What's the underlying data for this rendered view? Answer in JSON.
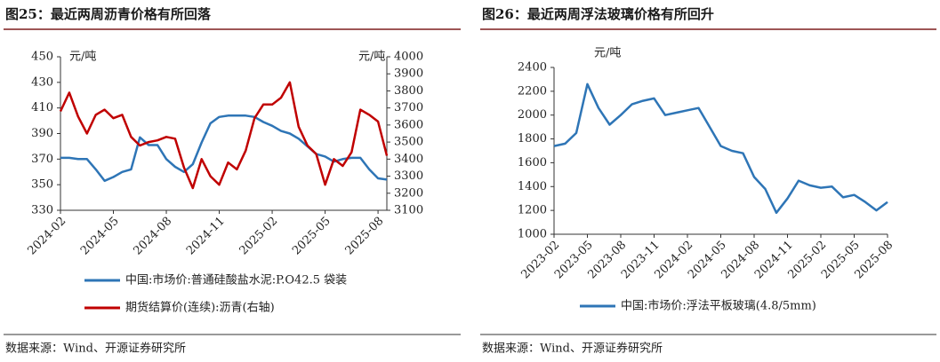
{
  "chart_data": [
    {
      "type": "line",
      "title": "图25：最近两周沥青价格有所回落",
      "source": "数据来源：Wind、开源证券研究所",
      "y_unit": "元/吨",
      "y2_unit": "元/吨",
      "categories": [
        "2024-02",
        null,
        null,
        null,
        null,
        null,
        "2024-05",
        null,
        null,
        null,
        null,
        null,
        "2024-08",
        null,
        null,
        null,
        null,
        null,
        "2024-11",
        null,
        null,
        null,
        null,
        null,
        "2025-02",
        null,
        null,
        null,
        null,
        null,
        "2025-05",
        null,
        null,
        null,
        null,
        null,
        "2025-08",
        null
      ],
      "ylim": [
        330,
        450
      ],
      "yticks": [
        330,
        350,
        370,
        390,
        410,
        430,
        450
      ],
      "y2lim": [
        3100,
        4000
      ],
      "y2ticks": [
        3100,
        3200,
        3300,
        3400,
        3500,
        3600,
        3700,
        3800,
        3900,
        4000
      ],
      "series": [
        {
          "name": "中国:市场价:普通硅酸盐水泥:P.O42.5 袋装",
          "color": "#2e75b6",
          "values": [
            371,
            371,
            370,
            370,
            362,
            353,
            356,
            360,
            362,
            387,
            381,
            381,
            370,
            364,
            360,
            366,
            383,
            398,
            403,
            404,
            404,
            404,
            403,
            399,
            396,
            392,
            390,
            386,
            380,
            374,
            372,
            368,
            370,
            371,
            371,
            362,
            355,
            354
          ]
        },
        {
          "name": "期货结算价(连续):沥青(右轴)",
          "color": "#c00000",
          "axis": "y2",
          "values": [
            3680,
            3790,
            3650,
            3550,
            3660,
            3690,
            3640,
            3660,
            3530,
            3480,
            3500,
            3510,
            3530,
            3520,
            3350,
            3230,
            3400,
            3300,
            3250,
            3380,
            3340,
            3450,
            3640,
            3720,
            3720,
            3760,
            3850,
            3590,
            3480,
            3430,
            3250,
            3400,
            3360,
            3440,
            3690,
            3660,
            3620,
            3420
          ]
        }
      ]
    },
    {
      "type": "line",
      "title": "图26：最近两周浮法玻璃价格有所回升",
      "source": "数据来源：Wind、开源证券研究所",
      "y_unit": "元/吨",
      "categories": [
        "2023-02",
        null,
        null,
        "2023-05",
        null,
        null,
        "2023-08",
        null,
        null,
        "2023-11",
        null,
        null,
        "2024-02",
        null,
        null,
        "2024-05",
        null,
        null,
        "2024-08",
        null,
        null,
        "2024-11",
        null,
        null,
        "2025-02",
        null,
        null,
        "2025-05",
        null,
        null,
        "2025-08"
      ],
      "ylim": [
        1000,
        2400
      ],
      "yticks": [
        1000,
        1200,
        1400,
        1600,
        1800,
        2000,
        2200,
        2400
      ],
      "series": [
        {
          "name": "中国:市场价:浮法平板玻璃(4.8/5mm)",
          "color": "#2e75b6",
          "values": [
            1740,
            1760,
            1850,
            2260,
            2060,
            1920,
            2000,
            2090,
            2120,
            2140,
            2000,
            2020,
            2040,
            2060,
            1900,
            1740,
            1700,
            1680,
            1480,
            1380,
            1180,
            1300,
            1450,
            1410,
            1390,
            1400,
            1310,
            1330,
            1270,
            1200,
            1270
          ]
        }
      ]
    }
  ]
}
